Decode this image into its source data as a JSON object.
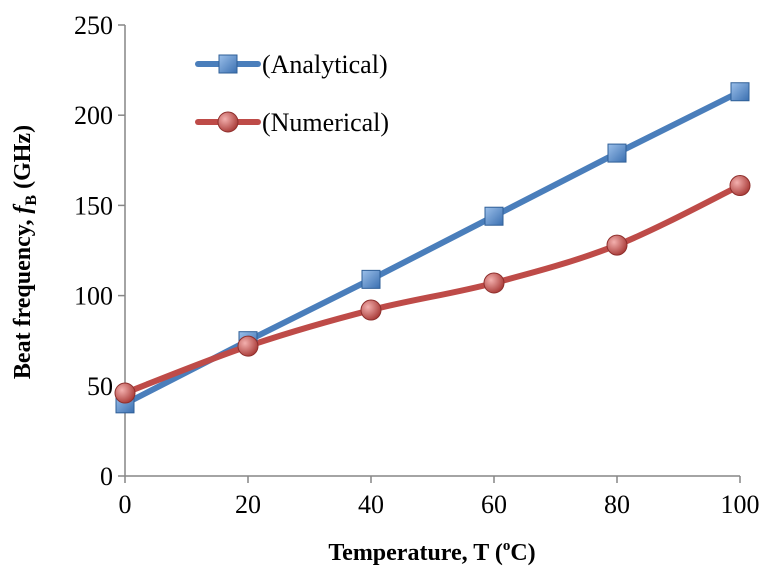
{
  "chart_data": {
    "type": "line",
    "x": [
      0,
      20,
      40,
      60,
      80,
      100
    ],
    "xlim": [
      0,
      100
    ],
    "ylim": [
      0,
      250
    ],
    "x_ticks": [
      "0",
      "20",
      "40",
      "60",
      "80",
      "100"
    ],
    "y_ticks": [
      "0",
      "50",
      "100",
      "150",
      "200",
      "250"
    ],
    "xlabel": {
      "main": "Temperature, T (",
      "sup": "o",
      "tail": "C)"
    },
    "ylabel": {
      "main": "Beat frequency, ",
      "var": "f",
      "sub": "B",
      "tail": " (GHz)"
    },
    "grid": false,
    "legend_position": "top-left",
    "series": [
      {
        "name": "(Analytical)",
        "values": [
          40,
          75,
          109,
          144,
          179,
          213
        ],
        "color": "#4a7ebb",
        "marker": "square"
      },
      {
        "name": "(Numerical)",
        "values": [
          46,
          72,
          92,
          107,
          128,
          161
        ],
        "color": "#be4b48",
        "marker": "circle"
      }
    ]
  }
}
